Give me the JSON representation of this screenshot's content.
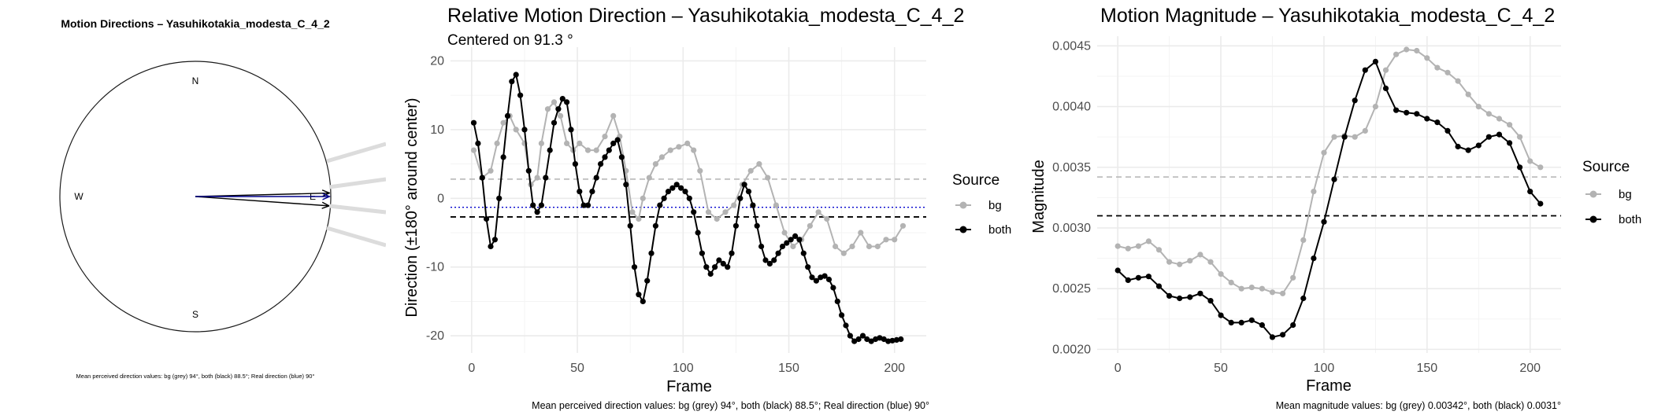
{
  "chart_data": [
    {
      "type": "compass",
      "title": "Motion Directions – Yasuhikotakia_modesta_C_4_2",
      "labels": {
        "north": "N",
        "south": "S",
        "east": "E",
        "west": "W"
      },
      "arrows": [
        {
          "name": "bg",
          "color": "#000000",
          "angle_deg": 94
        },
        {
          "name": "both",
          "color": "#000000",
          "angle_deg": 88.5
        },
        {
          "name": "real",
          "color": "#00008B",
          "angle_deg": 90
        }
      ],
      "caption": "Mean perceived direction values: bg (grey) 94°, both (black) 88.5°; Real direction (blue) 90°"
    },
    {
      "type": "line",
      "title": "Relative Motion Direction – Yasuhikotakia_modesta_C_4_2",
      "subtitle": "Centered on  91.3 °",
      "xlabel": "Frame",
      "ylabel": "Direction (±180° around center)",
      "xlim": [
        -10,
        215
      ],
      "ylim": [
        -22.5,
        22
      ],
      "xticks": [
        0,
        50,
        100,
        150,
        200
      ],
      "yticks": [
        -20,
        -10,
        0,
        10,
        20
      ],
      "grid": true,
      "legend": {
        "title": "Source",
        "position": "right"
      },
      "hlines": [
        {
          "y": 2.8,
          "color": "#bdbdbd",
          "style": "dashed"
        },
        {
          "y": -2.7,
          "color": "#000000",
          "style": "dashed"
        },
        {
          "y": -1.3,
          "color": "#0000cd",
          "style": "dotted"
        }
      ],
      "series": [
        {
          "name": "bg",
          "color": "#b3b3b3",
          "x": [
            1,
            5,
            9,
            12,
            15,
            18,
            21,
            25,
            28,
            31,
            33,
            36,
            39,
            42,
            45,
            48,
            51,
            55,
            59,
            63,
            67,
            70,
            73,
            76,
            79,
            81,
            84,
            87,
            90,
            94,
            98,
            102,
            105,
            108,
            112,
            116,
            120,
            124,
            128,
            132,
            136,
            140,
            144,
            148,
            152,
            156,
            160,
            164,
            168,
            172,
            176,
            180,
            184,
            188,
            192,
            196,
            200,
            204
          ],
          "y": [
            7,
            3,
            4,
            8,
            11,
            12,
            10,
            8,
            2,
            3,
            8,
            13,
            14,
            12,
            8,
            7,
            8,
            7,
            7,
            9,
            12,
            9,
            4,
            -2,
            -3,
            0,
            3,
            5,
            6,
            7,
            7.5,
            8,
            7,
            4,
            -2,
            -3,
            -2,
            -1,
            2,
            4,
            5,
            3,
            -1,
            -5,
            -7,
            -6,
            -4,
            -2,
            -3,
            -7,
            -8,
            -7,
            -5,
            -7,
            -7,
            -6,
            -6,
            -4
          ]
        },
        {
          "name": "both",
          "color": "#000000",
          "x": [
            1,
            3,
            5,
            7,
            9,
            11,
            13,
            15,
            17,
            19,
            21,
            23,
            25,
            27,
            29,
            31,
            33,
            35,
            37,
            39,
            41,
            43,
            45,
            47,
            49,
            51,
            53,
            55,
            57,
            59,
            61,
            63,
            65,
            67,
            69,
            71,
            73,
            75,
            77,
            79,
            81,
            83,
            85,
            87,
            89,
            91,
            93,
            95,
            97,
            99,
            101,
            103,
            105,
            107,
            109,
            111,
            113,
            115,
            117,
            119,
            121,
            123,
            125,
            127,
            129,
            131,
            133,
            135,
            137,
            139,
            141,
            143,
            145,
            147,
            149,
            151,
            153,
            155,
            157,
            159,
            161,
            163,
            165,
            167,
            169,
            171,
            173,
            175,
            177,
            179,
            181,
            183,
            185,
            187,
            189,
            191,
            193,
            195,
            197,
            199,
            201,
            203
          ],
          "y": [
            11,
            8,
            3,
            -3,
            -7,
            -6,
            0,
            6,
            12,
            17,
            18,
            15,
            10,
            4,
            -1,
            -2,
            -1,
            3,
            7,
            11,
            13,
            14.5,
            14,
            10,
            5,
            1,
            -1,
            -1,
            1,
            3,
            5,
            6,
            7,
            8,
            8.5,
            6,
            2,
            -4,
            -10,
            -14,
            -15,
            -12,
            -8,
            -4,
            -1,
            0,
            1,
            1.5,
            2,
            1.5,
            1,
            0,
            -2,
            -5,
            -8,
            -10,
            -11,
            -10,
            -9,
            -9.5,
            -10,
            -8,
            -4,
            0,
            2,
            1,
            -1,
            -4,
            -7,
            -9,
            -9.5,
            -9,
            -8,
            -7,
            -6.5,
            -6,
            -5.5,
            -6,
            -8,
            -10,
            -11.5,
            -12,
            -11.5,
            -11.3,
            -11.8,
            -13,
            -15,
            -17,
            -18.5,
            -20,
            -20.8,
            -20.5,
            -20,
            -20.5,
            -20.8,
            -20.5,
            -20.3,
            -20.5,
            -20.8,
            -20.7,
            -20.6,
            -20.5
          ]
        }
      ],
      "caption": "Mean perceived direction values: bg (grey) 94°, both (black) 88.5°; Real direction (blue) 90°"
    },
    {
      "type": "line",
      "title": "Motion Magnitude – Yasuhikotakia_modesta_C_4_2",
      "xlabel": "Frame",
      "ylabel": "Magnitude",
      "xlim": [
        -10,
        215
      ],
      "ylim": [
        0.00197,
        0.00458
      ],
      "xticks": [
        0,
        50,
        100,
        150,
        200
      ],
      "yticks": [
        0.002,
        0.0025,
        0.003,
        0.0035,
        0.004,
        0.0045
      ],
      "ytick_labels": [
        "0.0020",
        "0.0025",
        "0.0030",
        "0.0035",
        "0.0040",
        "0.0045"
      ],
      "grid": true,
      "legend": {
        "title": "Source",
        "position": "right"
      },
      "hlines": [
        {
          "y": 0.00342,
          "color": "#bdbdbd",
          "style": "dashed"
        },
        {
          "y": 0.0031,
          "color": "#000000",
          "style": "dashed"
        }
      ],
      "series": [
        {
          "name": "bg",
          "color": "#b3b3b3",
          "x": [
            0,
            5,
            10,
            15,
            20,
            25,
            30,
            35,
            40,
            45,
            50,
            55,
            60,
            65,
            70,
            75,
            80,
            85,
            90,
            95,
            100,
            105,
            110,
            115,
            120,
            125,
            130,
            135,
            140,
            145,
            150,
            155,
            160,
            165,
            170,
            175,
            180,
            185,
            190,
            195,
            200,
            205
          ],
          "y": [
            0.00285,
            0.00283,
            0.00285,
            0.00289,
            0.00282,
            0.00272,
            0.0027,
            0.00273,
            0.00278,
            0.00272,
            0.00262,
            0.00255,
            0.0025,
            0.00251,
            0.0025,
            0.00247,
            0.00246,
            0.00259,
            0.0029,
            0.0033,
            0.00362,
            0.00375,
            0.00376,
            0.00375,
            0.0038,
            0.004,
            0.0043,
            0.00443,
            0.00447,
            0.00446,
            0.0044,
            0.00432,
            0.00428,
            0.00421,
            0.0041,
            0.004,
            0.00394,
            0.0039,
            0.00385,
            0.00375,
            0.00355,
            0.0035
          ]
        },
        {
          "name": "both",
          "color": "#000000",
          "x": [
            0,
            5,
            10,
            15,
            20,
            25,
            30,
            35,
            40,
            45,
            50,
            55,
            60,
            65,
            70,
            75,
            80,
            85,
            90,
            95,
            100,
            105,
            110,
            115,
            120,
            125,
            130,
            135,
            140,
            145,
            150,
            155,
            160,
            165,
            170,
            175,
            180,
            185,
            190,
            195,
            200,
            205
          ],
          "y": [
            0.00265,
            0.00257,
            0.00259,
            0.0026,
            0.00252,
            0.00244,
            0.00242,
            0.00243,
            0.00246,
            0.0024,
            0.00228,
            0.00222,
            0.00222,
            0.00224,
            0.0022,
            0.0021,
            0.00212,
            0.0022,
            0.00242,
            0.00275,
            0.00305,
            0.0034,
            0.00375,
            0.00405,
            0.0043,
            0.00437,
            0.00415,
            0.00397,
            0.00395,
            0.00394,
            0.0039,
            0.00387,
            0.0038,
            0.00367,
            0.00364,
            0.00368,
            0.00375,
            0.00377,
            0.0037,
            0.0035,
            0.0033,
            0.0032
          ]
        }
      ],
      "caption": "Mean magnitude values: bg (grey) 0.00342°, both (black) 0.0031°"
    }
  ]
}
